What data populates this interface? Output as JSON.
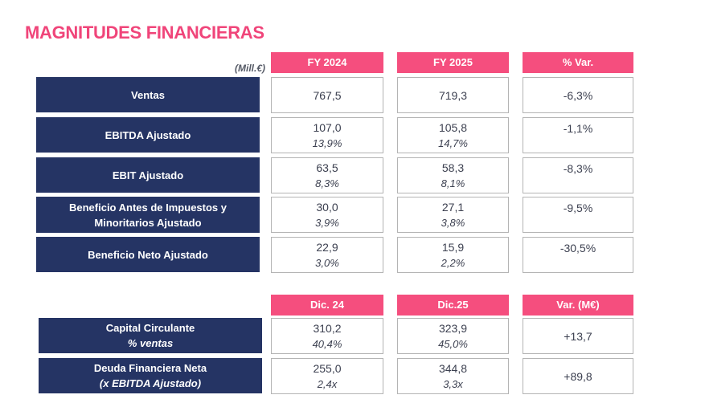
{
  "title": "MAGNITUDES FINANCIERAS",
  "unit": "(Mill.€)",
  "table1": {
    "headers": [
      "FY 2024",
      "FY 2025",
      "% Var."
    ],
    "rows": [
      {
        "label": "Ventas",
        "fy2024": "767,5",
        "fy2025": "719,3",
        "var": "-6,3%"
      },
      {
        "label": "EBITDA Ajustado",
        "fy2024": "107,0",
        "fy2024_pct": "13,9%",
        "fy2025": "105,8",
        "fy2025_pct": "14,7%",
        "var": "-1,1%"
      },
      {
        "label": "EBIT Ajustado",
        "fy2024": "63,5",
        "fy2024_pct": "8,3%",
        "fy2025": "58,3",
        "fy2025_pct": "8,1%",
        "var": "-8,3%"
      },
      {
        "label_line1": "Beneficio Antes de Impuestos y",
        "label_line2": "Minoritarios Ajustado",
        "fy2024": "30,0",
        "fy2024_pct": "3,9%",
        "fy2025": "27,1",
        "fy2025_pct": "3,8%",
        "var": "-9,5%"
      },
      {
        "label": "Beneficio Neto Ajustado",
        "fy2024": "22,9",
        "fy2024_pct": "3,0%",
        "fy2025": "15,9",
        "fy2025_pct": "2,2%",
        "var": "-30,5%"
      }
    ]
  },
  "table2": {
    "headers": [
      "Dic. 24",
      "Dic.25",
      "Var. (M€)"
    ],
    "rows": [
      {
        "label": "Capital Circulante",
        "sublabel": "% ventas",
        "dic24": "310,2",
        "dic24_pct": "40,4%",
        "dic25": "323,9",
        "dic25_pct": "45,0%",
        "var": "+13,7"
      },
      {
        "label": "Deuda Financiera Neta",
        "sublabel": "(x EBITDA Ajustado)",
        "dic24": "255,0",
        "dic24_pct": "2,4x",
        "dic25": "344,8",
        "dic25_pct": "3,3x",
        "var": "+89,8"
      }
    ]
  },
  "colors": {
    "accent": "#f54e7e",
    "title": "#f0457a",
    "label_bg": "#253464"
  }
}
